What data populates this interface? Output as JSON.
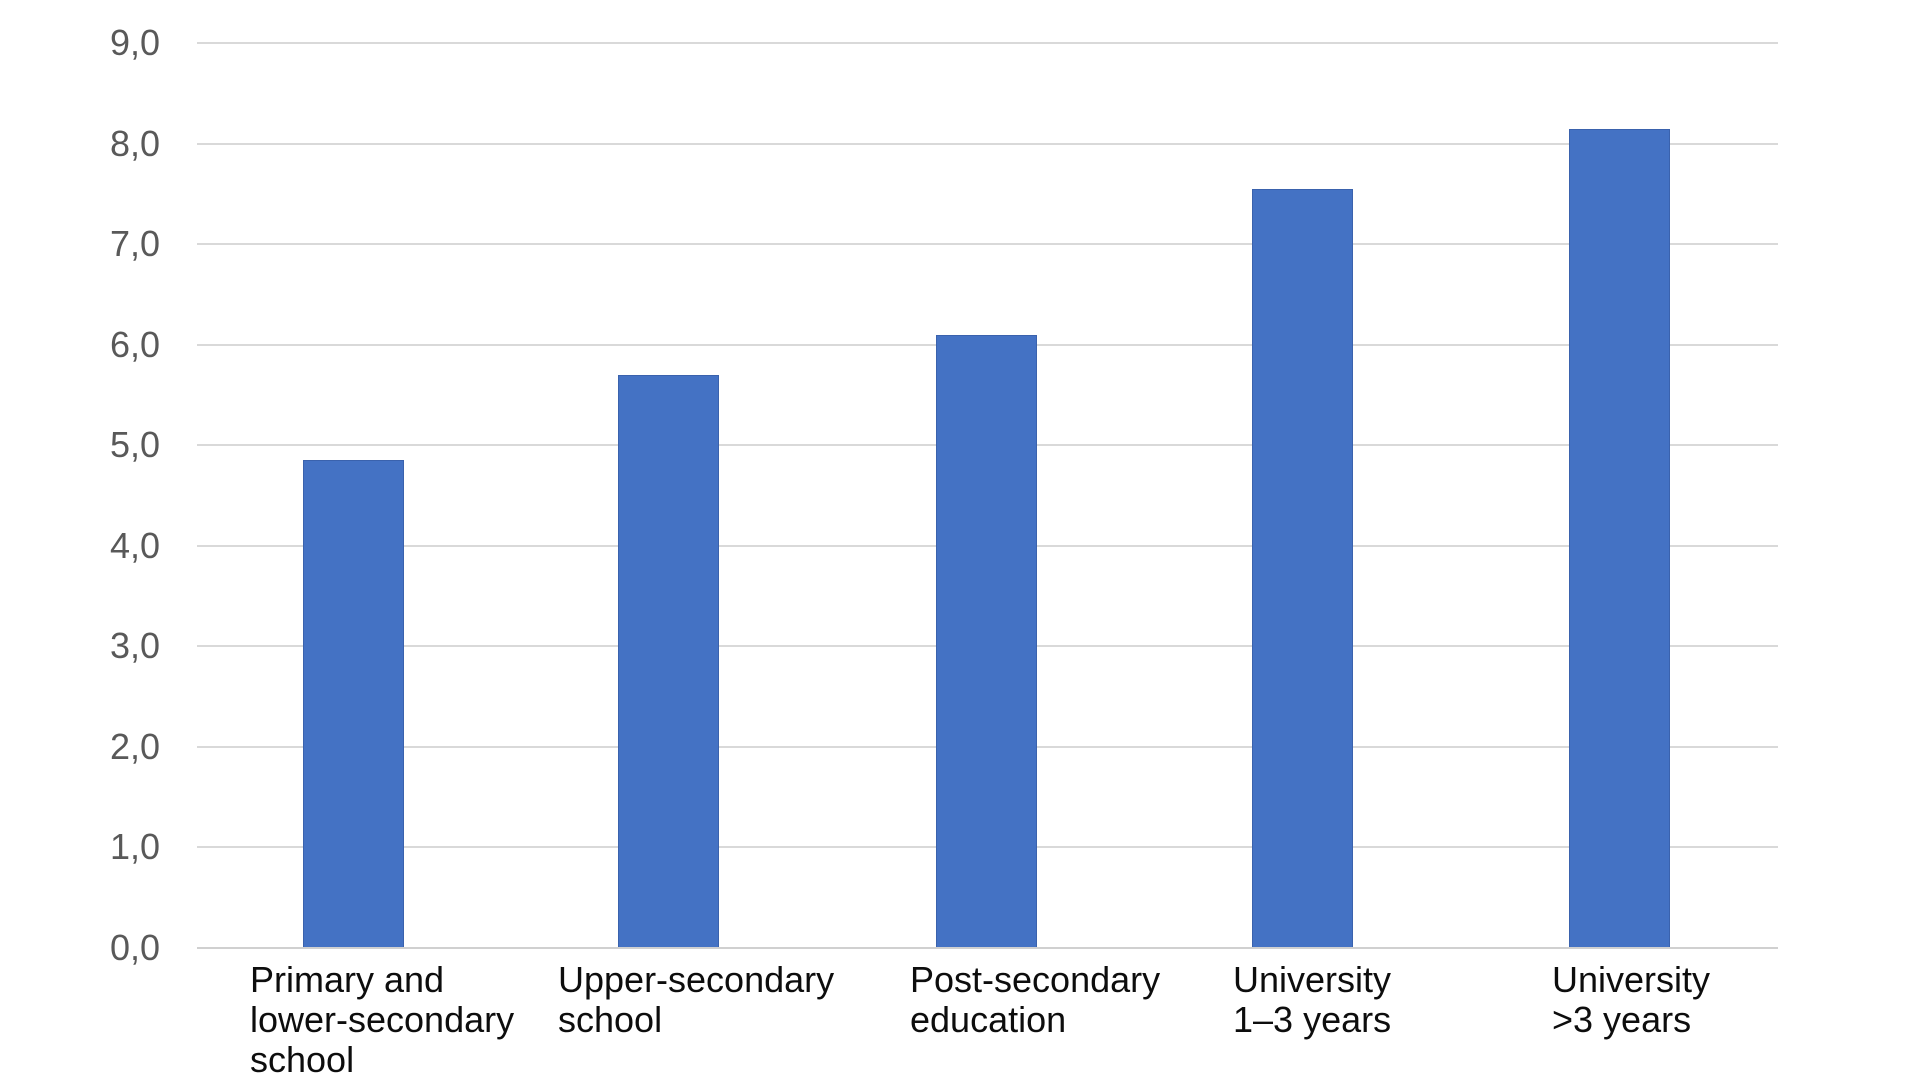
{
  "chart_data": {
    "type": "bar",
    "title": "",
    "xlabel": "",
    "ylabel": "",
    "categories": [
      "Primary and lower-secondary school",
      "Upper-secondary school",
      "Post-secondary education",
      "University 1–3 years",
      "University >3 years"
    ],
    "category_label_lines": [
      [
        "Primary and",
        "lower-secondary",
        "school"
      ],
      [
        "Upper-secondary",
        "school"
      ],
      [
        "Post-secondary",
        "education"
      ],
      [
        "University",
        "1–3 years"
      ],
      [
        "University",
        ">3 years"
      ]
    ],
    "values": [
      4.85,
      5.7,
      6.1,
      7.55,
      8.15
    ],
    "ylim": [
      0,
      9
    ],
    "ytick_step": 1,
    "ytick_labels": [
      "0,0",
      "1,0",
      "2,0",
      "3,0",
      "4,0",
      "5,0",
      "6,0",
      "7,0",
      "8,0",
      "9,0"
    ],
    "grid": true,
    "legend": false,
    "colors": {
      "bar_fill": "#4472C4",
      "bar_edge": "#3A62AD",
      "gridline": "#D9D9D9",
      "axis_line": "#D0D0D0",
      "ytick_text": "#595959",
      "category_text": "#0D0D0D",
      "background": "#FFFFFF"
    }
  }
}
